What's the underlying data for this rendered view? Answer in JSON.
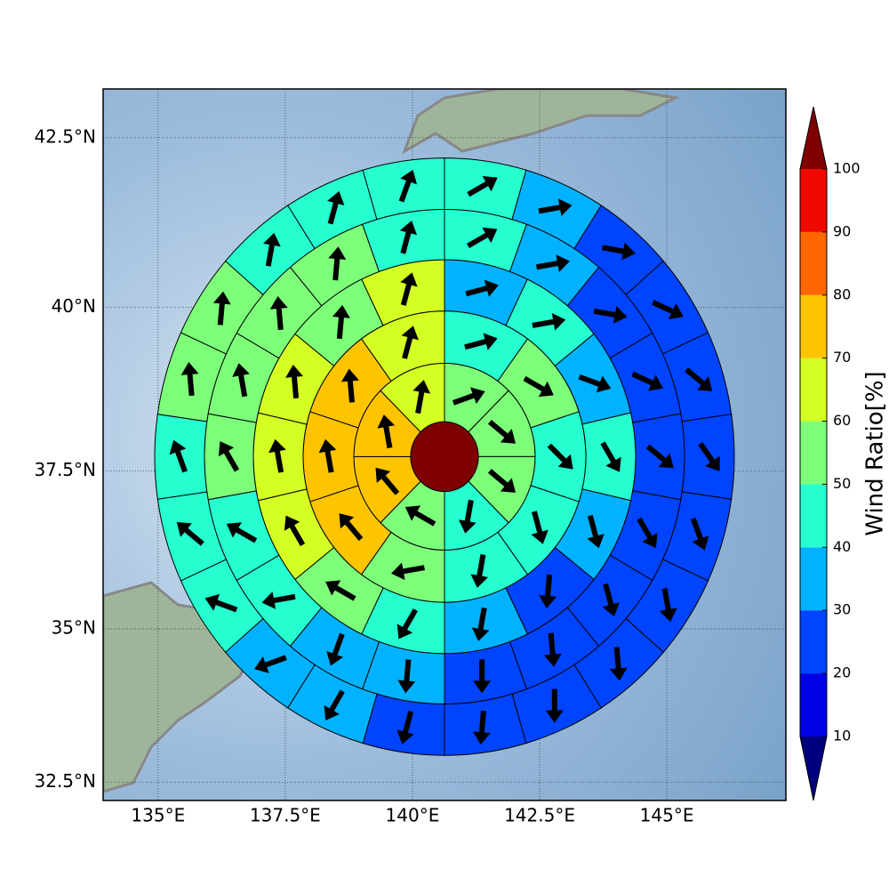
{
  "chart_data": {
    "type": "polar_sectors",
    "projection": "mercator",
    "xlim": [
      133.92,
      147.34
    ],
    "ylim": [
      32.2,
      43.2
    ],
    "xticks": [
      {
        "value": 135,
        "label": "135°E"
      },
      {
        "value": 137.5,
        "label": "137.5°E"
      },
      {
        "value": 140,
        "label": "140°E"
      },
      {
        "value": 142.5,
        "label": "142.5°E"
      },
      {
        "value": 145,
        "label": "145°E"
      }
    ],
    "yticks": [
      {
        "value": 32.5,
        "label": "32.5°N"
      },
      {
        "value": 35,
        "label": "35°N"
      },
      {
        "value": 37.5,
        "label": "37.5°N"
      },
      {
        "value": 40,
        "label": "40°N"
      },
      {
        "value": 42.5,
        "label": "42.5°N"
      }
    ],
    "grid": true,
    "center": [
      140.63,
      37.72
    ],
    "center_value": 105,
    "rings": [
      {
        "values": [
          55,
          55,
          55,
          45,
          55,
          75,
          75,
          65
        ],
        "directions": [
          70,
          130,
          130,
          190,
          300,
          320,
          350,
          10
        ]
      },
      {
        "values": [
          45,
          55,
          45,
          45,
          45,
          55,
          75,
          75,
          75,
          65
        ],
        "directions": [
          75,
          120,
          135,
          165,
          190,
          260,
          320,
          350,
          355,
          15
        ]
      },
      {
        "values": [
          35,
          45,
          35,
          45,
          35,
          25,
          35,
          45,
          55,
          65,
          65,
          65,
          55,
          65
        ],
        "directions": [
          75,
          80,
          110,
          150,
          165,
          185,
          190,
          210,
          300,
          330,
          350,
          355,
          5,
          15
        ]
      },
      {
        "values": [
          45,
          35,
          25,
          25,
          25,
          25,
          25,
          25,
          25,
          35,
          35,
          45,
          45,
          55,
          55,
          55,
          55,
          45
        ],
        "directions": [
          60,
          80,
          100,
          115,
          130,
          150,
          165,
          175,
          180,
          185,
          200,
          260,
          300,
          330,
          350,
          355,
          5,
          15
        ]
      },
      {
        "values": [
          45,
          35,
          25,
          25,
          25,
          25,
          25,
          25,
          25,
          25,
          25,
          25,
          35,
          35,
          45,
          45,
          45,
          55,
          55,
          45,
          45,
          45
        ],
        "directions": [
          60,
          80,
          100,
          115,
          130,
          145,
          160,
          170,
          175,
          180,
          185,
          195,
          210,
          250,
          290,
          310,
          340,
          355,
          5,
          10,
          15,
          20
        ]
      }
    ],
    "colorbar": {
      "label": "Wind Ratio[%]",
      "levels": [
        10,
        20,
        30,
        40,
        50,
        60,
        70,
        80,
        90,
        100
      ],
      "colors": [
        "#00007f",
        "#0000e3",
        "#0044ff",
        "#00b2ff",
        "#26ffd0",
        "#7dff7a",
        "#d4ff23",
        "#ffc400",
        "#ff6600",
        "#f10800",
        "#7f0000"
      ]
    }
  }
}
